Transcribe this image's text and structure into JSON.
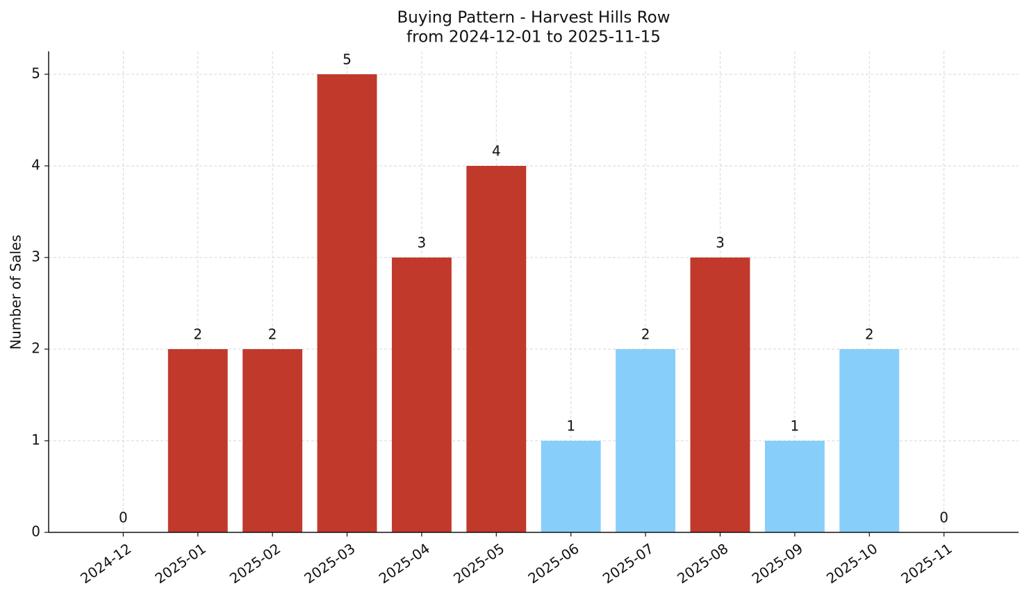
{
  "chart_data": {
    "type": "bar",
    "title": "Buying Pattern - Harvest Hills Row",
    "subtitle": "from 2024-12-01 to 2025-11-15",
    "y_label": "Number of Sales",
    "categories": [
      "2024-12",
      "2025-01",
      "2025-02",
      "2025-03",
      "2025-04",
      "2025-05",
      "2025-06",
      "2025-07",
      "2025-08",
      "2025-09",
      "2025-10",
      "2025-11"
    ],
    "values": [
      0,
      2,
      2,
      5,
      3,
      4,
      1,
      2,
      3,
      1,
      2,
      0
    ],
    "colors": [
      "#c0392b",
      "#c0392b",
      "#c0392b",
      "#c0392b",
      "#c0392b",
      "#c0392b",
      "#87cefa",
      "#87cefa",
      "#c0392b",
      "#87cefa",
      "#87cefa",
      "#c0392b"
    ],
    "ylim": [
      0,
      5.25
    ],
    "yticks": [
      0,
      1,
      2,
      3,
      4,
      5
    ],
    "grid": true
  }
}
